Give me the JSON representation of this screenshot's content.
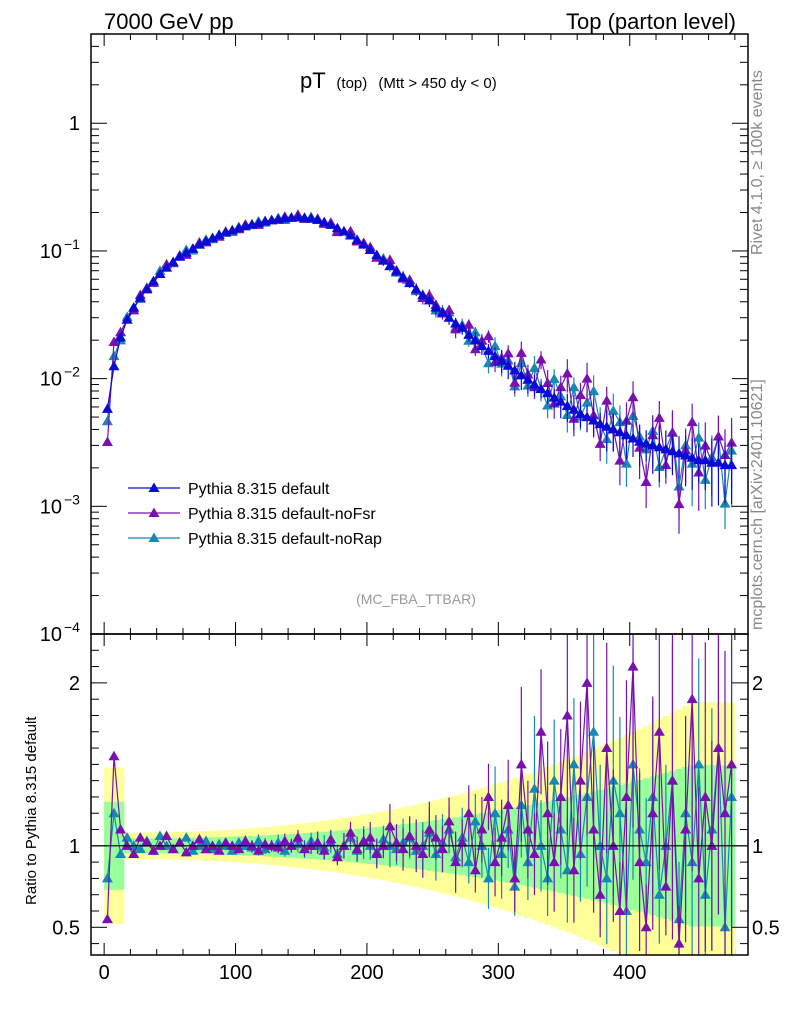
{
  "header": {
    "left": "7000 GeV pp",
    "right": "Top (parton level)"
  },
  "side_labels": {
    "rivet": "Rivet 4.1.0, ≥ 100k events",
    "mcplots": "mcplots.cern.ch [arXiv:2401.10621]"
  },
  "colors": {
    "default": "#0a0ad6",
    "noFsr": "#7a10b0",
    "noRap": "#1589b3",
    "band_yellow": "#ffff99",
    "band_green": "#99ff99"
  },
  "chart_data": {
    "type": "line",
    "title": "pT",
    "title_sub": "(top)",
    "title_cut": "(Mtt > 450 dy < 0)",
    "watermark": "(MC_FBA_TTBAR)",
    "xlabel": "",
    "ratio_ylabel": "Ratio to Pythia 8.315 default",
    "xlim": [
      -10,
      490
    ],
    "ylim": [
      0.0001,
      5
    ],
    "ratio_ylim": [
      0.33,
      2.3
    ],
    "x_ticks": [
      0,
      100,
      200,
      300,
      400
    ],
    "x_tick_labels": [
      "0",
      "100",
      "200",
      "300",
      "400"
    ],
    "y_tick_labels": [
      {
        "value": 1,
        "label": "1",
        "exp": ""
      },
      {
        "value": 0.1,
        "label": "10",
        "exp": "−1"
      },
      {
        "value": 0.01,
        "label": "10",
        "exp": "−2"
      },
      {
        "value": 0.001,
        "label": "10",
        "exp": "−3"
      },
      {
        "value": 0.0001,
        "label": "10",
        "exp": "−4"
      }
    ],
    "ratio_ticks": [
      {
        "value": 2,
        "label": "2"
      },
      {
        "value": 1,
        "label": "1"
      },
      {
        "value": 0.5,
        "label": "0.5"
      }
    ],
    "legend": [
      {
        "key": "default",
        "label": "Pythia 8.315 default"
      },
      {
        "key": "noFsr",
        "label": "Pythia 8.315 default-noFsr"
      },
      {
        "key": "noRap",
        "label": "Pythia 8.315 default-noRap"
      }
    ],
    "series": [
      {
        "name": "Pythia 8.315 default",
        "key": "default",
        "points": [
          [
            2.5,
            0.0058
          ],
          [
            7.5,
            0.0125
          ],
          [
            12.5,
            0.021
          ],
          [
            17.5,
            0.029
          ],
          [
            22.5,
            0.036
          ],
          [
            27.5,
            0.043
          ],
          [
            32.5,
            0.05
          ],
          [
            37.5,
            0.058
          ],
          [
            42.5,
            0.066
          ],
          [
            47.5,
            0.074
          ],
          [
            52.5,
            0.082
          ],
          [
            57.5,
            0.09
          ],
          [
            62.5,
            0.097
          ],
          [
            67.5,
            0.104
          ],
          [
            72.5,
            0.112
          ],
          [
            77.5,
            0.119
          ],
          [
            82.5,
            0.126
          ],
          [
            87.5,
            0.133
          ],
          [
            92.5,
            0.139
          ],
          [
            97.5,
            0.145
          ],
          [
            102.5,
            0.151
          ],
          [
            107.5,
            0.156
          ],
          [
            112.5,
            0.161
          ],
          [
            117.5,
            0.165
          ],
          [
            122.5,
            0.17
          ],
          [
            127.5,
            0.174
          ],
          [
            132.5,
            0.177
          ],
          [
            137.5,
            0.18
          ],
          [
            142.5,
            0.182
          ],
          [
            147.5,
            0.183
          ],
          [
            152.5,
            0.182
          ],
          [
            157.5,
            0.179
          ],
          [
            162.5,
            0.175
          ],
          [
            167.5,
            0.168
          ],
          [
            172.5,
            0.16
          ],
          [
            177.5,
            0.151
          ],
          [
            182.5,
            0.142
          ],
          [
            187.5,
            0.132
          ],
          [
            192.5,
            0.122
          ],
          [
            197.5,
            0.112
          ],
          [
            202.5,
            0.102
          ],
          [
            207.5,
            0.093
          ],
          [
            212.5,
            0.084
          ],
          [
            217.5,
            0.076
          ],
          [
            222.5,
            0.069
          ],
          [
            227.5,
            0.062
          ],
          [
            232.5,
            0.056
          ],
          [
            237.5,
            0.05
          ],
          [
            242.5,
            0.045
          ],
          [
            247.5,
            0.041
          ],
          [
            252.5,
            0.036
          ],
          [
            257.5,
            0.033
          ],
          [
            262.5,
            0.03
          ],
          [
            267.5,
            0.027
          ],
          [
            272.5,
            0.025
          ],
          [
            277.5,
            0.022
          ],
          [
            282.5,
            0.02
          ],
          [
            287.5,
            0.018
          ],
          [
            292.5,
            0.0165
          ],
          [
            297.5,
            0.015
          ],
          [
            302.5,
            0.0138
          ],
          [
            307.5,
            0.0126
          ],
          [
            312.5,
            0.0116
          ],
          [
            317.5,
            0.0106
          ],
          [
            322.5,
            0.0098
          ],
          [
            327.5,
            0.009
          ],
          [
            332.5,
            0.0083
          ],
          [
            337.5,
            0.0077
          ],
          [
            342.5,
            0.0071
          ],
          [
            347.5,
            0.0066
          ],
          [
            352.5,
            0.0061
          ],
          [
            357.5,
            0.0057
          ],
          [
            362.5,
            0.0053
          ],
          [
            367.5,
            0.005
          ],
          [
            372.5,
            0.0047
          ],
          [
            377.5,
            0.0044
          ],
          [
            382.5,
            0.0042
          ],
          [
            387.5,
            0.004
          ],
          [
            392.5,
            0.0038
          ],
          [
            397.5,
            0.0036
          ],
          [
            402.5,
            0.0034
          ],
          [
            407.5,
            0.0032
          ],
          [
            412.5,
            0.0031
          ],
          [
            417.5,
            0.003
          ],
          [
            422.5,
            0.0029
          ],
          [
            427.5,
            0.0028
          ],
          [
            432.5,
            0.0027
          ],
          [
            437.5,
            0.0026
          ],
          [
            442.5,
            0.0025
          ],
          [
            447.5,
            0.0024
          ],
          [
            452.5,
            0.0023
          ],
          [
            457.5,
            0.0023
          ],
          [
            462.5,
            0.0022
          ],
          [
            467.5,
            0.0022
          ],
          [
            472.5,
            0.0021
          ],
          [
            477.5,
            0.0021
          ]
        ]
      },
      {
        "name": "Pythia 8.315 default-noFsr",
        "key": "noFsr",
        "ratio": [
          0.55,
          1.55,
          1.1,
          1.0,
          0.95,
          1.05,
          1.02,
          0.97,
          1.0,
          1.06,
          0.98,
          1.02,
          0.96,
          1.0,
          1.04,
          0.98,
          1.0,
          0.97,
          1.02,
          1.0,
          0.98,
          1.03,
          1.0,
          0.97,
          1.01,
          1.0,
          0.99,
          1.03,
          1.0,
          1.05,
          0.98,
          1.0,
          1.02,
          0.97,
          1.04,
          0.93,
          1.0,
          1.08,
          0.98,
          1.03,
          1.05,
          0.95,
          1.0,
          1.12,
          1.02,
          0.98,
          1.06,
          1.0,
          0.95,
          1.1,
          1.05,
          0.98,
          1.15,
          0.9,
          1.02,
          1.2,
          0.85,
          1.1,
          1.3,
          0.9,
          1.05,
          1.25,
          0.8,
          1.5,
          1.1,
          0.95,
          1.7,
          1.2,
          0.9,
          1.3,
          1.8,
          0.85,
          1.4,
          2.0,
          1.1,
          0.7,
          1.6,
          1.0,
          0.6,
          1.3,
          2.1,
          0.9,
          0.5,
          1.2,
          1.7,
          0.75,
          1.4,
          0.4,
          1.1,
          1.9,
          0.8,
          1.3,
          1.0,
          1.6,
          1.2,
          1.5
        ]
      },
      {
        "name": "Pythia 8.315 default-noRap",
        "key": "noRap",
        "ratio": [
          0.8,
          1.2,
          0.95,
          1.05,
          1.0,
          0.98,
          1.03,
          0.97,
          1.06,
          1.0,
          0.98,
          1.02,
          1.05,
          0.97,
          1.0,
          1.03,
          0.98,
          1.01,
          1.0,
          0.97,
          1.02,
          1.0,
          0.99,
          1.03,
          0.98,
          1.0,
          1.02,
          0.97,
          1.0,
          1.01,
          0.98,
          1.03,
          1.0,
          0.99,
          1.02,
          0.95,
          1.0,
          1.05,
          0.97,
          1.02,
          1.0,
          0.96,
          1.04,
          1.0,
          0.98,
          1.02,
          1.05,
          0.97,
          1.0,
          1.08,
          0.95,
          1.02,
          1.1,
          0.93,
          1.05,
          0.9,
          1.15,
          1.0,
          0.8,
          1.2,
          0.95,
          1.1,
          0.75,
          1.25,
          0.9,
          1.35,
          1.0,
          0.8,
          1.4,
          1.1,
          0.85,
          1.5,
          0.95,
          1.3,
          1.7,
          1.0,
          0.8,
          1.4,
          1.2,
          0.6,
          1.5,
          1.1,
          0.9,
          1.3,
          0.7,
          1.0,
          1.4,
          0.55,
          1.2,
          0.9,
          1.5,
          0.7,
          1.1,
          1.6,
          0.5,
          1.3
        ]
      }
    ]
  }
}
